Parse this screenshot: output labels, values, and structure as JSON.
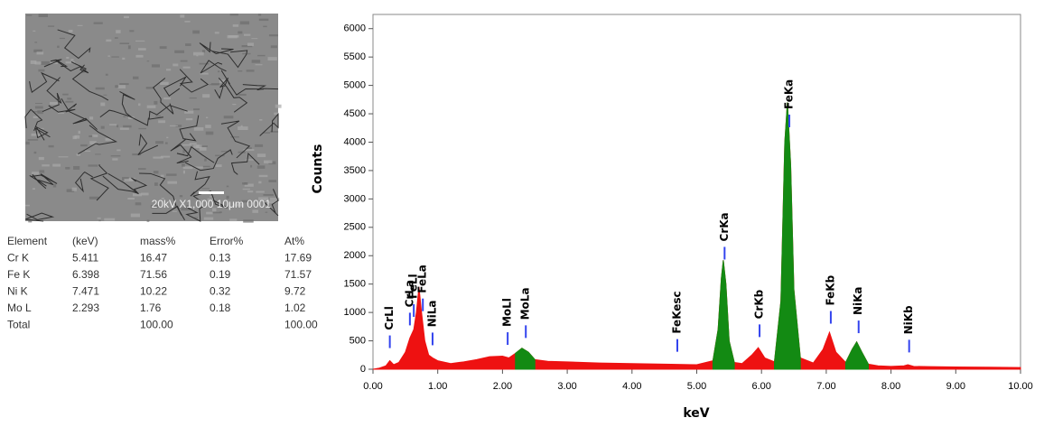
{
  "image": {
    "caption": "20kV X1,000 10μm 0001"
  },
  "table": {
    "header": [
      "Element",
      "(keV)",
      "mass%",
      "Error%",
      "At%"
    ],
    "rows": [
      [
        "Cr K",
        "5.411",
        "16.47",
        "0.13",
        "17.69"
      ],
      [
        "Fe K",
        "6.398",
        "71.56",
        "0.19",
        "71.57"
      ],
      [
        "Ni K",
        "7.471",
        "10.22",
        "0.32",
        "9.72"
      ],
      [
        "Mo L",
        "2.293",
        "1.76",
        "0.18",
        "1.02"
      ],
      [
        "Total",
        "",
        "100.00",
        "",
        "100.00"
      ]
    ]
  },
  "chart_data": {
    "type": "area",
    "xlabel": "keV",
    "ylabel": "Counts",
    "xlim": [
      0,
      10
    ],
    "xticks": [
      {
        "value": 0,
        "label": "0.00"
      },
      {
        "value": 1,
        "label": "1.00"
      },
      {
        "value": 2,
        "label": "2.00"
      },
      {
        "value": 3,
        "label": "3.00"
      },
      {
        "value": 4,
        "label": "4.00"
      },
      {
        "value": 5,
        "label": "5.00"
      },
      {
        "value": 6,
        "label": "6.00"
      },
      {
        "value": 7,
        "label": "7.00"
      },
      {
        "value": 8,
        "label": "8.00"
      },
      {
        "value": 9,
        "label": "9.00"
      },
      {
        "value": 10,
        "label": "10.00"
      }
    ],
    "ylim": [
      0,
      6250
    ],
    "yticks": [
      0,
      500,
      1000,
      1500,
      2000,
      2500,
      3000,
      3500,
      4000,
      4500,
      5000,
      5500,
      6000
    ],
    "x": [
      0,
      0.1,
      0.2,
      0.26,
      0.32,
      0.4,
      0.5,
      0.57,
      0.63,
      0.67,
      0.71,
      0.75,
      0.8,
      0.86,
      0.92,
      1.0,
      1.2,
      1.4,
      1.6,
      1.8,
      2.0,
      2.1,
      2.2,
      2.3,
      2.4,
      2.5,
      2.7,
      3.0,
      3.5,
      4.0,
      4.5,
      4.7,
      5.0,
      5.25,
      5.33,
      5.38,
      5.41,
      5.45,
      5.5,
      5.58,
      5.7,
      5.85,
      5.95,
      6.05,
      6.2,
      6.3,
      6.36,
      6.4,
      6.45,
      6.5,
      6.6,
      6.8,
      6.95,
      7.05,
      7.15,
      7.3,
      7.4,
      7.47,
      7.55,
      7.65,
      7.8,
      8.0,
      8.2,
      8.26,
      8.35,
      8.6,
      9.0,
      9.5,
      10.0
    ],
    "series": [
      {
        "color": "#ee1111",
        "values": [
          0,
          20,
          60,
          150,
          80,
          120,
          300,
          550,
          700,
          1000,
          1450,
          1000,
          500,
          250,
          200,
          150,
          100,
          130,
          170,
          220,
          230,
          200,
          280,
          370,
          300,
          170,
          140,
          130,
          110,
          100,
          90,
          85,
          80,
          150,
          700,
          1600,
          1920,
          1500,
          500,
          120,
          100,
          250,
          380,
          200,
          130,
          1200,
          4000,
          4700,
          3600,
          1400,
          200,
          110,
          350,
          650,
          300,
          120,
          350,
          480,
          300,
          90,
          60,
          50,
          60,
          80,
          50,
          45,
          40,
          35,
          30
        ]
      },
      {
        "color": "#138a13",
        "values": [
          null,
          null,
          null,
          null,
          null,
          null,
          null,
          null,
          null,
          null,
          null,
          null,
          null,
          null,
          null,
          null,
          null,
          null,
          null,
          null,
          null,
          null,
          280,
          370,
          300,
          170,
          null,
          null,
          null,
          null,
          null,
          null,
          null,
          150,
          700,
          1600,
          1920,
          1500,
          500,
          120,
          null,
          null,
          null,
          null,
          130,
          1200,
          4000,
          4700,
          3600,
          1400,
          200,
          null,
          null,
          null,
          null,
          120,
          350,
          480,
          300,
          90,
          null,
          null,
          null,
          null,
          null,
          null,
          null,
          null,
          null
        ]
      }
    ],
    "marker_color": "#3344ee",
    "peaks": [
      {
        "label": "CrLl",
        "x": 0.26
      },
      {
        "label": "CrLa",
        "x": 0.57
      },
      {
        "label": "FeLl",
        "x": 0.63
      },
      {
        "label": "FeLa",
        "x": 0.77
      },
      {
        "label": "NiLa",
        "x": 0.92
      },
      {
        "label": "MoLl",
        "x": 2.08
      },
      {
        "label": "MoLa",
        "x": 2.36
      },
      {
        "label": "FeKesc",
        "x": 4.7
      },
      {
        "label": "CrKa",
        "x": 5.43
      },
      {
        "label": "CrKb",
        "x": 5.97
      },
      {
        "label": "FeKa",
        "x": 6.43
      },
      {
        "label": "FeKb",
        "x": 7.07
      },
      {
        "label": "NiKa",
        "x": 7.5
      },
      {
        "label": "NiKb",
        "x": 8.28
      }
    ]
  }
}
